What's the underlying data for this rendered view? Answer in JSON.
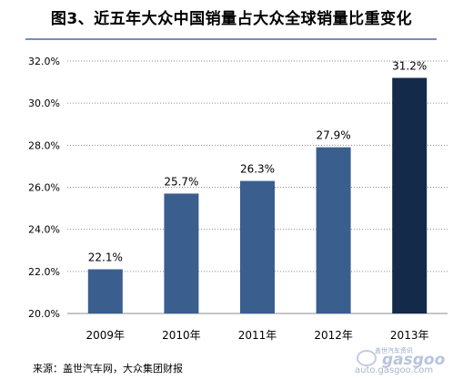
{
  "title": "图3、近五年大众中国销量占大众全球销量比重变化",
  "source": "来源：盖世汽车网，大众集团财报",
  "watermark": {
    "cn": "盖世汽车资讯",
    "logo": "gasgoo",
    "url": "auto.gasgoo.com"
  },
  "colors": {
    "bar": "#3a5f8f",
    "highlight": "#142a4a",
    "grid": "#8c8c8c",
    "rule": "#6f8fbf"
  },
  "chart_data": {
    "type": "bar",
    "categories": [
      "2009年",
      "2010年",
      "2011年",
      "2012年",
      "2013年"
    ],
    "values": [
      22.1,
      25.7,
      26.3,
      27.9,
      31.2
    ],
    "data_labels": [
      "22.1%",
      "25.7%",
      "26.3%",
      "27.9%",
      "31.2%"
    ],
    "highlight_index": 4,
    "ylim": [
      20,
      32
    ],
    "yticks": [
      20,
      22,
      24,
      26,
      28,
      30,
      32
    ],
    "ytick_labels": [
      "20.0%",
      "22.0%",
      "24.0%",
      "26.0%",
      "28.0%",
      "30.0%",
      "32.0%"
    ],
    "grid": true,
    "xlabel": "",
    "ylabel": ""
  }
}
